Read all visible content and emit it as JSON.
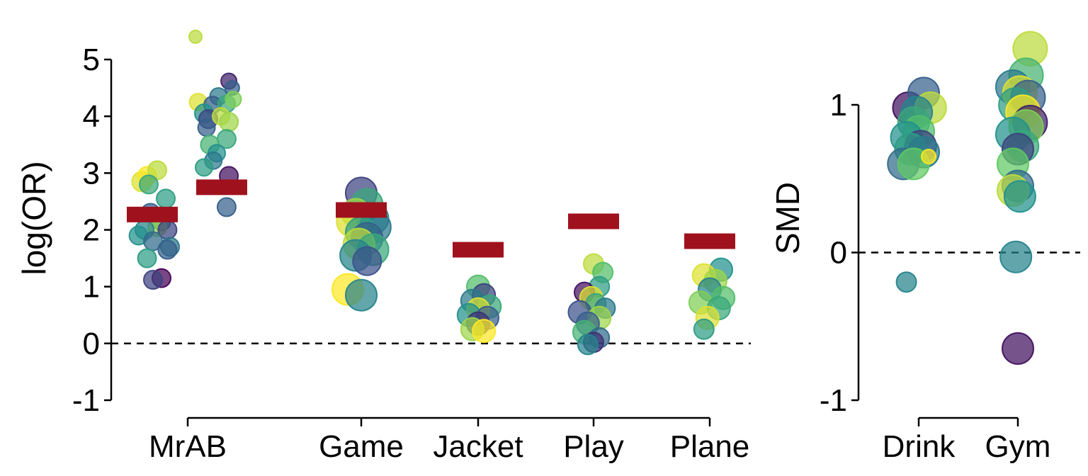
{
  "chart_data": [
    {
      "type": "scatter",
      "description_type": "jittered dot plot with mean bars",
      "ylabel": "log(OR)",
      "ylim": [
        -1,
        5
      ],
      "yticks": [
        -1,
        0,
        1,
        2,
        3,
        4,
        5
      ],
      "reference_line": 0,
      "categories": [
        "MrAB",
        "Game",
        "Jacket",
        "Play",
        "Plane"
      ],
      "groups": [
        {
          "name": "MrAB",
          "mean_bars": [
            2.27,
            2.75
          ],
          "points": [
            {
              "x": 0.82,
              "y": 2.85,
              "s": 14,
              "c": 0.95
            },
            {
              "x": 0.88,
              "y": 2.95,
              "s": 13,
              "c": 1.0
            },
            {
              "x": 1.0,
              "y": 3.05,
              "s": 13,
              "c": 0.9
            },
            {
              "x": 0.9,
              "y": 2.8,
              "s": 13,
              "c": 0.6
            },
            {
              "x": 1.1,
              "y": 2.55,
              "s": 13,
              "c": 0.55
            },
            {
              "x": 0.92,
              "y": 2.3,
              "s": 13,
              "c": 0.3
            },
            {
              "x": 1.05,
              "y": 2.15,
              "s": 13,
              "c": 0.4
            },
            {
              "x": 1.0,
              "y": 2.05,
              "s": 13,
              "c": 0.85
            },
            {
              "x": 0.85,
              "y": 2.0,
              "s": 13,
              "c": 0.45
            },
            {
              "x": 1.12,
              "y": 2.0,
              "s": 13,
              "c": 0.2
            },
            {
              "x": 0.78,
              "y": 1.9,
              "s": 13,
              "c": 0.5
            },
            {
              "x": 0.95,
              "y": 1.8,
              "s": 13,
              "c": 0.35
            },
            {
              "x": 1.15,
              "y": 1.7,
              "s": 13,
              "c": 0.4
            },
            {
              "x": 1.12,
              "y": 1.65,
              "s": 13,
              "c": 0.3
            },
            {
              "x": 0.88,
              "y": 1.5,
              "s": 13,
              "c": 0.55
            },
            {
              "x": 1.05,
              "y": 1.15,
              "s": 13,
              "c": 0.0
            },
            {
              "x": 0.95,
              "y": 1.12,
              "s": 13,
              "c": 0.2
            },
            {
              "x": 1.45,
              "y": 5.4,
              "s": 9,
              "c": 0.9
            },
            {
              "x": 1.82,
              "y": 4.62,
              "s": 11,
              "c": 0.1
            },
            {
              "x": 1.85,
              "y": 4.5,
              "s": 10,
              "c": 0.3
            },
            {
              "x": 1.72,
              "y": 4.35,
              "s": 12,
              "c": 0.4
            },
            {
              "x": 1.48,
              "y": 4.25,
              "s": 12,
              "c": 0.95
            },
            {
              "x": 1.65,
              "y": 4.2,
              "s": 12,
              "c": 0.3
            },
            {
              "x": 1.8,
              "y": 4.22,
              "s": 12,
              "c": 0.6
            },
            {
              "x": 1.86,
              "y": 4.3,
              "s": 11,
              "c": 0.8
            },
            {
              "x": 1.55,
              "y": 4.05,
              "s": 13,
              "c": 0.5
            },
            {
              "x": 1.6,
              "y": 3.95,
              "s": 13,
              "c": 0.2
            },
            {
              "x": 1.75,
              "y": 4.0,
              "s": 12,
              "c": 0.9
            },
            {
              "x": 1.82,
              "y": 3.9,
              "s": 13,
              "c": 0.85
            },
            {
              "x": 1.58,
              "y": 3.8,
              "s": 12,
              "c": 0.3
            },
            {
              "x": 1.8,
              "y": 3.6,
              "s": 13,
              "c": 0.6
            },
            {
              "x": 1.62,
              "y": 3.5,
              "s": 13,
              "c": 0.65
            },
            {
              "x": 1.7,
              "y": 3.35,
              "s": 12,
              "c": 0.5
            },
            {
              "x": 1.66,
              "y": 3.22,
              "s": 12,
              "c": 0.4
            },
            {
              "x": 1.55,
              "y": 3.1,
              "s": 12,
              "c": 0.55
            },
            {
              "x": 1.82,
              "y": 2.95,
              "s": 13,
              "c": 0.05
            },
            {
              "x": 1.8,
              "y": 2.4,
              "s": 13,
              "c": 0.3
            }
          ]
        },
        {
          "name": "Game",
          "mean_bars": [
            2.35
          ],
          "points": [
            {
              "x": 3.0,
              "y": 2.65,
              "s": 22,
              "c": 0.2
            },
            {
              "x": 3.05,
              "y": 2.45,
              "s": 22,
              "c": 0.6
            },
            {
              "x": 2.95,
              "y": 2.3,
              "s": 20,
              "c": 0.85
            },
            {
              "x": 3.1,
              "y": 2.2,
              "s": 22,
              "c": 0.45
            },
            {
              "x": 2.92,
              "y": 2.15,
              "s": 22,
              "c": 0.95
            },
            {
              "x": 3.12,
              "y": 2.05,
              "s": 22,
              "c": 0.4
            },
            {
              "x": 3.0,
              "y": 1.95,
              "s": 22,
              "c": 0.55
            },
            {
              "x": 3.05,
              "y": 1.85,
              "s": 22,
              "c": 0.3
            },
            {
              "x": 2.98,
              "y": 1.75,
              "s": 22,
              "c": 0.9
            },
            {
              "x": 3.1,
              "y": 1.65,
              "s": 22,
              "c": 0.6
            },
            {
              "x": 2.95,
              "y": 1.55,
              "s": 22,
              "c": 0.45
            },
            {
              "x": 3.05,
              "y": 1.45,
              "s": 20,
              "c": 0.25
            },
            {
              "x": 2.88,
              "y": 0.95,
              "s": 22,
              "c": 1.0
            },
            {
              "x": 3.0,
              "y": 0.85,
              "s": 22,
              "c": 0.45
            }
          ]
        },
        {
          "name": "Jacket",
          "mean_bars": [
            1.65
          ],
          "points": [
            {
              "x": 4.0,
              "y": 1.0,
              "s": 16,
              "c": 0.7
            },
            {
              "x": 4.05,
              "y": 0.85,
              "s": 16,
              "c": 0.2
            },
            {
              "x": 3.95,
              "y": 0.75,
              "s": 16,
              "c": 0.4
            },
            {
              "x": 4.1,
              "y": 0.65,
              "s": 16,
              "c": 0.6
            },
            {
              "x": 4.0,
              "y": 0.6,
              "s": 16,
              "c": 0.95
            },
            {
              "x": 3.92,
              "y": 0.5,
              "s": 16,
              "c": 0.5
            },
            {
              "x": 4.08,
              "y": 0.45,
              "s": 16,
              "c": 0.3
            },
            {
              "x": 4.0,
              "y": 0.35,
              "s": 16,
              "c": 0.15
            },
            {
              "x": 3.95,
              "y": 0.25,
              "s": 16,
              "c": 0.85
            },
            {
              "x": 4.05,
              "y": 0.22,
              "s": 16,
              "c": 1.0
            }
          ]
        },
        {
          "name": "Play",
          "mean_bars": [
            2.15
          ],
          "points": [
            {
              "x": 5.0,
              "y": 1.4,
              "s": 14,
              "c": 0.9
            },
            {
              "x": 5.08,
              "y": 1.25,
              "s": 14,
              "c": 0.7
            },
            {
              "x": 5.05,
              "y": 1.0,
              "s": 14,
              "c": 0.55
            },
            {
              "x": 4.92,
              "y": 0.9,
              "s": 14,
              "c": 0.05
            },
            {
              "x": 4.98,
              "y": 0.8,
              "s": 16,
              "c": 0.95
            },
            {
              "x": 5.02,
              "y": 0.7,
              "s": 14,
              "c": 0.6
            },
            {
              "x": 5.1,
              "y": 0.62,
              "s": 14,
              "c": 0.4
            },
            {
              "x": 4.88,
              "y": 0.55,
              "s": 16,
              "c": 0.25
            },
            {
              "x": 5.05,
              "y": 0.45,
              "s": 16,
              "c": 0.85
            },
            {
              "x": 4.95,
              "y": 0.35,
              "s": 16,
              "c": 0.3
            },
            {
              "x": 4.92,
              "y": 0.2,
              "s": 16,
              "c": 0.65
            },
            {
              "x": 5.05,
              "y": 0.1,
              "s": 14,
              "c": 0.35
            },
            {
              "x": 5.0,
              "y": 0.02,
              "s": 14,
              "c": 0.15
            },
            {
              "x": 4.95,
              "y": -0.02,
              "s": 14,
              "c": 0.45
            }
          ]
        },
        {
          "name": "Plane",
          "mean_bars": [
            1.8
          ],
          "points": [
            {
              "x": 6.1,
              "y": 1.3,
              "s": 16,
              "c": 0.5
            },
            {
              "x": 5.95,
              "y": 1.2,
              "s": 16,
              "c": 0.95
            },
            {
              "x": 6.05,
              "y": 1.1,
              "s": 16,
              "c": 0.85
            },
            {
              "x": 6.0,
              "y": 0.95,
              "s": 16,
              "c": 0.45
            },
            {
              "x": 6.12,
              "y": 0.8,
              "s": 16,
              "c": 0.7
            },
            {
              "x": 5.92,
              "y": 0.72,
              "s": 16,
              "c": 0.8
            },
            {
              "x": 6.08,
              "y": 0.62,
              "s": 16,
              "c": 0.6
            },
            {
              "x": 5.98,
              "y": 0.45,
              "s": 16,
              "c": 0.95
            },
            {
              "x": 5.95,
              "y": 0.25,
              "s": 14,
              "c": 0.55
            }
          ]
        }
      ]
    },
    {
      "type": "scatter",
      "description_type": "jittered dot plot",
      "ylabel": "SMD",
      "ylim": [
        -1,
        1
      ],
      "yticks": [
        -1,
        0,
        1
      ],
      "reference_line": 0,
      "categories": [
        "Drink",
        "Gym"
      ],
      "groups": [
        {
          "name": "Drink",
          "points": [
            {
              "x": 0.9,
              "y": 0.98,
              "s": 22,
              "c": 0.05
            },
            {
              "x": 1.05,
              "y": 1.08,
              "s": 22,
              "c": 0.3
            },
            {
              "x": 1.12,
              "y": 0.98,
              "s": 22,
              "c": 0.9
            },
            {
              "x": 0.98,
              "y": 0.95,
              "s": 22,
              "c": 0.45
            },
            {
              "x": 0.95,
              "y": 0.88,
              "s": 22,
              "c": 0.6
            },
            {
              "x": 1.0,
              "y": 0.82,
              "s": 22,
              "c": 0.7
            },
            {
              "x": 0.88,
              "y": 0.78,
              "s": 22,
              "c": 0.5
            },
            {
              "x": 1.02,
              "y": 0.72,
              "s": 22,
              "c": 0.2
            },
            {
              "x": 0.92,
              "y": 0.7,
              "s": 22,
              "c": 0.55
            },
            {
              "x": 1.05,
              "y": 0.68,
              "s": 22,
              "c": 0.4
            },
            {
              "x": 0.85,
              "y": 0.6,
              "s": 22,
              "c": 0.35
            },
            {
              "x": 0.95,
              "y": 0.6,
              "s": 22,
              "c": 0.75
            },
            {
              "x": 1.1,
              "y": 0.65,
              "s": 10,
              "c": 1.0
            },
            {
              "x": 0.88,
              "y": -0.2,
              "s": 14,
              "c": 0.45
            }
          ]
        },
        {
          "name": "Gym",
          "points": [
            {
              "x": 2.12,
              "y": 1.38,
              "s": 24,
              "c": 0.9
            },
            {
              "x": 2.08,
              "y": 1.2,
              "s": 24,
              "c": 0.65
            },
            {
              "x": 1.95,
              "y": 1.12,
              "s": 24,
              "c": 0.4
            },
            {
              "x": 2.02,
              "y": 1.08,
              "s": 24,
              "c": 0.95
            },
            {
              "x": 2.1,
              "y": 1.05,
              "s": 24,
              "c": 0.3
            },
            {
              "x": 1.98,
              "y": 1.0,
              "s": 24,
              "c": 0.55
            },
            {
              "x": 2.05,
              "y": 0.95,
              "s": 24,
              "c": 1.0
            },
            {
              "x": 2.12,
              "y": 0.88,
              "s": 24,
              "c": 0.1
            },
            {
              "x": 2.08,
              "y": 0.85,
              "s": 24,
              "c": 0.8
            },
            {
              "x": 1.95,
              "y": 0.8,
              "s": 24,
              "c": 0.5
            },
            {
              "x": 2.05,
              "y": 0.72,
              "s": 22,
              "c": 0.6
            },
            {
              "x": 2.0,
              "y": 0.7,
              "s": 22,
              "c": 0.2
            },
            {
              "x": 1.95,
              "y": 0.6,
              "s": 22,
              "c": 0.75
            },
            {
              "x": 2.0,
              "y": 0.45,
              "s": 22,
              "c": 0.35
            },
            {
              "x": 1.95,
              "y": 0.42,
              "s": 22,
              "c": 0.9
            },
            {
              "x": 2.02,
              "y": 0.38,
              "s": 22,
              "c": 0.5
            },
            {
              "x": 1.98,
              "y": -0.03,
              "s": 22,
              "c": 0.45
            },
            {
              "x": 2.0,
              "y": -0.65,
              "s": 22,
              "c": 0.05
            }
          ]
        }
      ]
    }
  ],
  "colors": {
    "mean_bar": "#a0111e",
    "palette": "viridis"
  }
}
